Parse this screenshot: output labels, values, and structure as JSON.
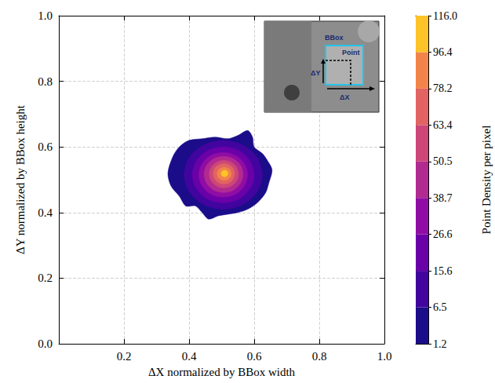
{
  "chart_data": {
    "type": "contour",
    "xlabel": "ΔX normalized by BBox width",
    "ylabel": "ΔY normalized by BBox height",
    "xlim": [
      0,
      1
    ],
    "ylim": [
      0,
      1
    ],
    "xticks": [
      0.2,
      0.4,
      0.6,
      0.8,
      {
        "value": 1,
        "label": "1.0"
      }
    ],
    "yticks": [
      {
        "value": 0,
        "label": "0.0"
      },
      0.2,
      0.4,
      0.6,
      0.8,
      {
        "value": 1,
        "label": "1.0"
      }
    ],
    "grid": true,
    "contours": [
      {
        "level": 1.2,
        "points": [
          [
            0.335,
            0.52
          ],
          [
            0.35,
            0.57
          ],
          [
            0.37,
            0.6
          ],
          [
            0.4,
            0.62
          ],
          [
            0.44,
            0.625
          ],
          [
            0.48,
            0.63
          ],
          [
            0.52,
            0.625
          ],
          [
            0.55,
            0.635
          ],
          [
            0.58,
            0.65
          ],
          [
            0.595,
            0.63
          ],
          [
            0.6,
            0.6
          ],
          [
            0.625,
            0.58
          ],
          [
            0.64,
            0.56
          ],
          [
            0.655,
            0.53
          ],
          [
            0.645,
            0.49
          ],
          [
            0.635,
            0.46
          ],
          [
            0.61,
            0.43
          ],
          [
            0.58,
            0.41
          ],
          [
            0.55,
            0.4
          ],
          [
            0.52,
            0.395
          ],
          [
            0.49,
            0.39
          ],
          [
            0.46,
            0.38
          ],
          [
            0.44,
            0.4
          ],
          [
            0.42,
            0.42
          ],
          [
            0.39,
            0.42
          ],
          [
            0.37,
            0.45
          ],
          [
            0.345,
            0.48
          ]
        ]
      },
      {
        "level": 6.5,
        "points": [
          [
            0.625,
            0.515
          ],
          [
            0.609,
            0.568
          ],
          [
            0.565,
            0.606
          ],
          [
            0.505,
            0.62
          ],
          [
            0.445,
            0.606
          ],
          [
            0.401,
            0.568
          ],
          [
            0.385,
            0.515
          ],
          [
            0.401,
            0.463
          ],
          [
            0.445,
            0.424
          ],
          [
            0.505,
            0.41
          ],
          [
            0.565,
            0.424
          ],
          [
            0.609,
            0.463
          ]
        ]
      },
      {
        "level": 15.6,
        "points": [
          [
            0.6,
            0.515
          ],
          [
            0.587,
            0.558
          ],
          [
            0.553,
            0.589
          ],
          [
            0.505,
            0.6
          ],
          [
            0.457,
            0.589
          ],
          [
            0.423,
            0.558
          ],
          [
            0.41,
            0.515
          ],
          [
            0.423,
            0.473
          ],
          [
            0.457,
            0.441
          ],
          [
            0.505,
            0.43
          ],
          [
            0.553,
            0.441
          ],
          [
            0.587,
            0.473
          ]
        ]
      },
      {
        "level": 26.6,
        "points": [
          [
            0.58,
            0.515
          ],
          [
            0.57,
            0.549
          ],
          [
            0.543,
            0.574
          ],
          [
            0.505,
            0.583
          ],
          [
            0.467,
            0.574
          ],
          [
            0.44,
            0.549
          ],
          [
            0.43,
            0.515
          ],
          [
            0.44,
            0.481
          ],
          [
            0.467,
            0.456
          ],
          [
            0.505,
            0.447
          ],
          [
            0.543,
            0.456
          ],
          [
            0.57,
            0.481
          ]
        ]
      },
      {
        "level": 38.7,
        "points": [
          [
            0.566,
            0.516
          ],
          [
            0.558,
            0.544
          ],
          [
            0.536,
            0.564
          ],
          [
            0.506,
            0.571
          ],
          [
            0.476,
            0.564
          ],
          [
            0.454,
            0.544
          ],
          [
            0.446,
            0.516
          ],
          [
            0.454,
            0.489
          ],
          [
            0.476,
            0.468
          ],
          [
            0.506,
            0.461
          ],
          [
            0.536,
            0.468
          ],
          [
            0.558,
            0.489
          ]
        ]
      },
      {
        "level": 50.5,
        "points": [
          [
            0.552,
            0.517
          ],
          [
            0.546,
            0.538
          ],
          [
            0.53,
            0.553
          ],
          [
            0.507,
            0.559
          ],
          [
            0.485,
            0.553
          ],
          [
            0.468,
            0.538
          ],
          [
            0.462,
            0.517
          ],
          [
            0.468,
            0.496
          ],
          [
            0.485,
            0.481
          ],
          [
            0.507,
            0.475
          ],
          [
            0.53,
            0.481
          ],
          [
            0.546,
            0.496
          ]
        ]
      },
      {
        "level": 63.4,
        "points": [
          [
            0.54,
            0.518
          ],
          [
            0.536,
            0.534
          ],
          [
            0.524,
            0.545
          ],
          [
            0.507,
            0.549
          ],
          [
            0.491,
            0.545
          ],
          [
            0.478,
            0.534
          ],
          [
            0.474,
            0.518
          ],
          [
            0.478,
            0.503
          ],
          [
            0.491,
            0.491
          ],
          [
            0.507,
            0.487
          ],
          [
            0.524,
            0.491
          ],
          [
            0.536,
            0.503
          ]
        ]
      },
      {
        "level": 78.2,
        "points": [
          [
            0.53,
            0.518
          ],
          [
            0.527,
            0.528
          ],
          [
            0.519,
            0.535
          ],
          [
            0.508,
            0.538
          ],
          [
            0.497,
            0.535
          ],
          [
            0.489,
            0.528
          ],
          [
            0.486,
            0.518
          ],
          [
            0.489,
            0.508
          ],
          [
            0.497,
            0.501
          ],
          [
            0.508,
            0.498
          ],
          [
            0.519,
            0.501
          ],
          [
            0.527,
            0.508
          ]
        ]
      },
      {
        "level": 96.4,
        "points": [
          [
            0.52,
            0.519
          ],
          [
            0.518,
            0.524
          ],
          [
            0.514,
            0.528
          ],
          [
            0.509,
            0.529
          ],
          [
            0.504,
            0.528
          ],
          [
            0.5,
            0.524
          ],
          [
            0.498,
            0.519
          ],
          [
            0.5,
            0.514
          ],
          [
            0.504,
            0.51
          ],
          [
            0.509,
            0.509
          ],
          [
            0.514,
            0.51
          ],
          [
            0.518,
            0.514
          ]
        ]
      }
    ],
    "colors": [
      "#1b0c8a",
      "#42049e",
      "#6a00a8",
      "#8f0da4",
      "#b12a90",
      "#cc4778",
      "#e16462",
      "#f2844b",
      "#fdc328"
    ],
    "colorbar": {
      "label": "Point Density per pixel",
      "range": [
        1.2,
        116.0
      ],
      "ticks": [
        1.2,
        6.5,
        15.6,
        26.6,
        38.7,
        50.5,
        63.4,
        78.2,
        96.4,
        {
          "value": 116,
          "label": "116.0"
        }
      ]
    },
    "annotations": [
      "BBox",
      "Point",
      "ΔY",
      "ΔX"
    ]
  }
}
